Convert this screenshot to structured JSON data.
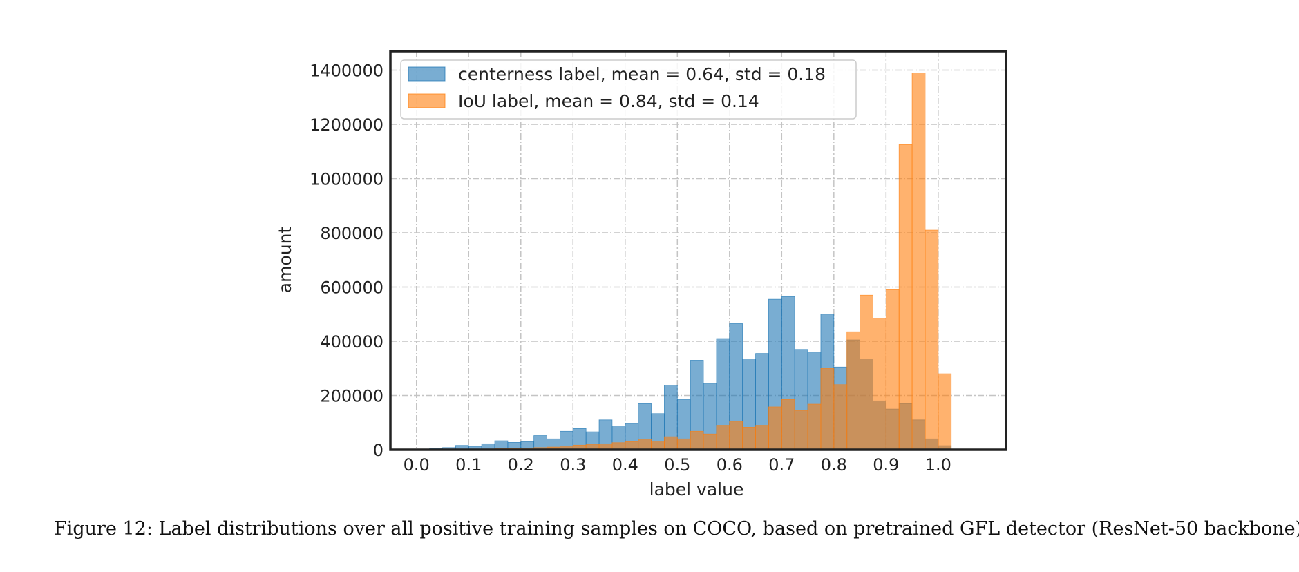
{
  "caption": "Figure 12: Label distributions over all positive training samples on COCO, based on pretrained GFL detector (ResNet-50 backbone).",
  "chart_data": {
    "type": "bar",
    "subtype": "overlapping-histogram",
    "title": "",
    "xlabel": "label value",
    "ylabel": "amount",
    "xlim": [
      -0.05,
      1.13
    ],
    "ylim": [
      0,
      1470000
    ],
    "xticks": [
      0.0,
      0.1,
      0.2,
      0.3,
      0.4,
      0.5,
      0.6,
      0.7,
      0.8,
      0.9,
      1.0
    ],
    "xtick_labels": [
      "0.0",
      "0.1",
      "0.2",
      "0.3",
      "0.4",
      "0.5",
      "0.6",
      "0.7",
      "0.8",
      "0.9",
      "1.0"
    ],
    "yticks": [
      0,
      200000,
      400000,
      600000,
      800000,
      1000000,
      1200000,
      1400000
    ],
    "ytick_labels": [
      "0",
      "200000",
      "400000",
      "600000",
      "800000",
      "1000000",
      "1200000",
      "1400000"
    ],
    "grid": true,
    "legend_position": "top-left",
    "bin_width": 0.025,
    "bin_start": 0.0,
    "series": [
      {
        "name": "centerness label, mean = 0.64, std = 0.18",
        "color": "#1f77b4",
        "values": [
          0,
          4000,
          8000,
          16000,
          13000,
          22000,
          33000,
          27000,
          30000,
          52000,
          40000,
          68000,
          78000,
          66000,
          110000,
          88000,
          97000,
          170000,
          133000,
          238000,
          186000,
          330000,
          245000,
          410000,
          465000,
          335000,
          355000,
          555000,
          565000,
          370000,
          360000,
          500000,
          305000,
          405000,
          335000,
          180000,
          150000,
          170000,
          110000,
          40000,
          15000
        ]
      },
      {
        "name": "IoU label, mean = 0.84, std = 0.14",
        "color": "#ff7f0e",
        "values": [
          0,
          0,
          0,
          0,
          2000,
          3000,
          4000,
          5000,
          6000,
          8000,
          10000,
          14000,
          17000,
          19000,
          22000,
          26000,
          30000,
          39000,
          32000,
          48000,
          40000,
          68000,
          58000,
          90000,
          105000,
          83000,
          90000,
          158000,
          185000,
          145000,
          168000,
          300000,
          240000,
          435000,
          570000,
          485000,
          590000,
          1125000,
          1390000,
          810000,
          280000
        ]
      }
    ]
  }
}
